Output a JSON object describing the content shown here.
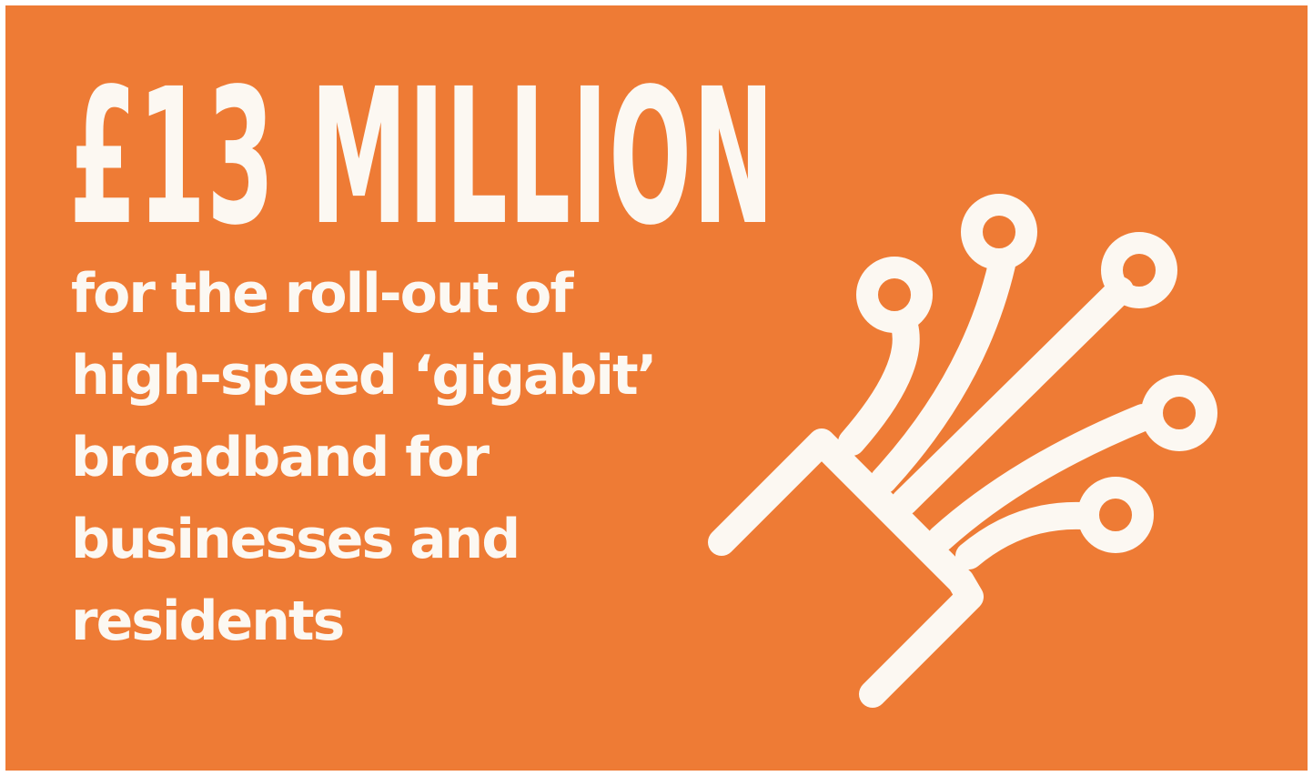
{
  "headline": "£13 MILLION",
  "subtext_lines": [
    "for the roll-out of",
    "high-speed ‘gigabit’",
    "broadband for",
    "businesses and",
    "residents"
  ],
  "colors": {
    "background": "#EE7B35",
    "foreground": "#FCF8F2",
    "border": "#FFFFFF"
  },
  "icon": "fibre-optic-cable-icon"
}
